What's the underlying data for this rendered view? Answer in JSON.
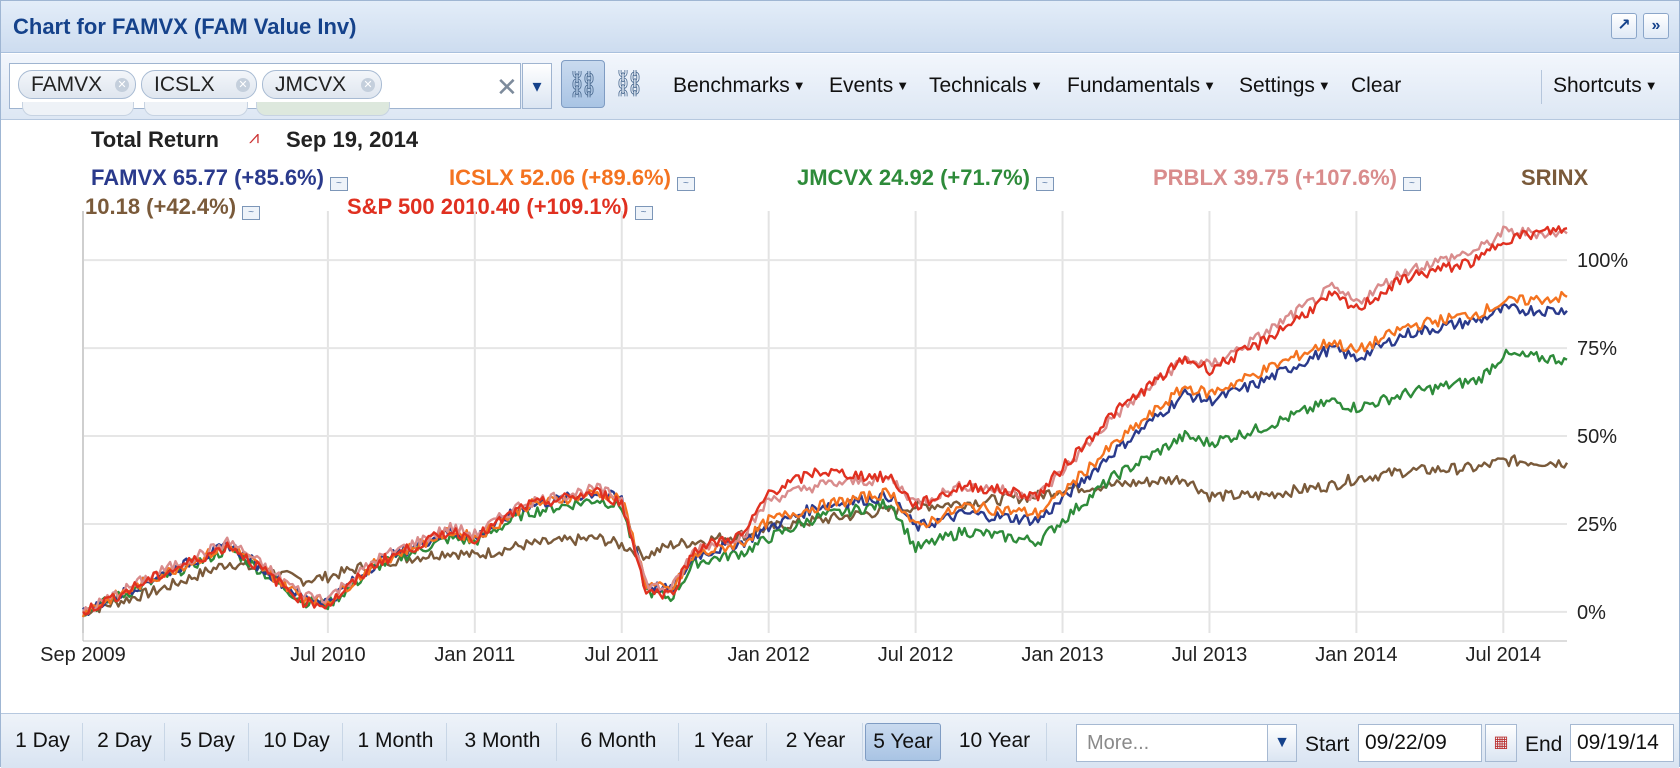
{
  "window": {
    "title": "Chart for FAMVX (FAM Value Inv)"
  },
  "toolbar": {
    "symbols": [
      "FAMVX",
      "ICSLX",
      "JMCVX"
    ],
    "menus": [
      "Benchmarks",
      "Events",
      "Technicals",
      "Fundamentals",
      "Settings"
    ],
    "clear_label": "Clear",
    "shortcuts_label": "Shortcuts"
  },
  "header": {
    "mode": "Total Return",
    "date": "Sep 19, 2014"
  },
  "legend": [
    {
      "text": "FAMVX 65.77 (+85.6%)",
      "color": "#2a3a8c"
    },
    {
      "text": "ICSLX 52.06 (+89.6%)",
      "color": "#f47320"
    },
    {
      "text": "JMCVX 24.92 (+71.7%)",
      "color": "#2e8b3a"
    },
    {
      "text": "PRBLX 39.75 (+107.6%)",
      "color": "#d98c8c"
    },
    {
      "text": "SRINX",
      "color": "#7a5a3a"
    },
    {
      "text": "10.18 (+42.4%)",
      "color": "#7a5a3a"
    },
    {
      "text": "S&P 500 2010.40 (+109.1%)",
      "color": "#e03020"
    }
  ],
  "chart_data": {
    "type": "line",
    "title": "Total Return",
    "x_tick_labels": [
      "Sep 2009",
      "Jul 2010",
      "Jan 2011",
      "Jul 2011",
      "Jan 2012",
      "Jul 2012",
      "Jan 2013",
      "Jul 2013",
      "Jan 2014",
      "Jul 2014"
    ],
    "x_tick_positions": [
      0,
      10,
      16,
      22,
      28,
      34,
      40,
      46,
      52,
      58
    ],
    "x_range": [
      0,
      60.6
    ],
    "y_tick_labels": [
      "0%",
      "25%",
      "50%",
      "75%",
      "100%"
    ],
    "y_ticks": [
      0,
      25,
      50,
      75,
      100
    ],
    "y_range": [
      -6,
      110
    ],
    "grid": true,
    "x_month_index": [
      0,
      3,
      6,
      9,
      10,
      12,
      15,
      16,
      18,
      21,
      22,
      23,
      24,
      25,
      27,
      28,
      30,
      33,
      34,
      36,
      39,
      40,
      42,
      45,
      46,
      48,
      51,
      52,
      54,
      57,
      58,
      60.6
    ],
    "series": [
      {
        "name": "SRINX",
        "color": "#7a5a3a",
        "values": [
          0,
          6,
          14,
          9,
          10,
          14,
          17,
          16,
          19,
          21,
          19,
          16,
          19,
          20,
          22,
          24,
          26,
          29,
          30,
          31,
          33,
          35,
          36,
          38,
          33,
          33,
          36,
          38,
          40,
          41,
          43,
          42.4
        ]
      },
      {
        "name": "JMCVX",
        "color": "#2e8b3a",
        "values": [
          0,
          9,
          18,
          3,
          2,
          13,
          21,
          20,
          28,
          32,
          30,
          6,
          4,
          14,
          17,
          21,
          27,
          31,
          18,
          23,
          20,
          26,
          38,
          50,
          48,
          52,
          60,
          58,
          62,
          66,
          73,
          71.7
        ]
      },
      {
        "name": "FAMVX",
        "color": "#2a3a8c",
        "values": [
          0,
          10,
          19,
          4,
          3,
          14,
          23,
          21,
          30,
          34,
          32,
          8,
          6,
          16,
          20,
          24,
          30,
          33,
          24,
          28,
          26,
          32,
          45,
          62,
          60,
          65,
          75,
          72,
          79,
          83,
          86,
          85.6
        ]
      },
      {
        "name": "ICSLX",
        "color": "#f47320",
        "values": [
          0,
          10,
          19,
          4,
          3,
          14,
          23,
          21,
          30,
          34,
          32,
          8,
          6,
          16,
          20,
          26,
          30,
          34,
          24,
          30,
          28,
          34,
          47,
          64,
          62,
          68,
          77,
          74,
          81,
          85,
          88,
          89.6
        ]
      },
      {
        "name": "PRBLX",
        "color": "#d98c8c",
        "values": [
          0,
          11,
          20,
          5,
          4,
          15,
          24,
          22,
          31,
          35,
          32,
          8,
          6,
          18,
          22,
          32,
          36,
          38,
          31,
          36,
          33,
          40,
          55,
          72,
          70,
          78,
          92,
          88,
          97,
          103,
          108,
          107.6
        ]
      },
      {
        "name": "S&P 500",
        "color": "#e03020",
        "values": [
          0,
          10,
          19,
          3,
          2,
          14,
          23,
          21,
          30,
          34,
          31,
          6,
          5,
          18,
          22,
          34,
          40,
          38,
          30,
          36,
          33,
          41,
          56,
          72,
          69,
          76,
          90,
          86,
          95,
          100,
          106,
          109.1
        ]
      }
    ]
  },
  "ranges": [
    "1 Day",
    "2 Day",
    "5 Day",
    "10 Day",
    "1 Month",
    "3 Month",
    "6 Month",
    "1 Year",
    "2 Year",
    "5 Year",
    "10 Year"
  ],
  "active_range": "5 Year",
  "more": {
    "placeholder": "More..."
  },
  "start": {
    "label": "Start",
    "value": "09/22/09"
  },
  "end": {
    "label": "End",
    "value": "09/19/14"
  }
}
